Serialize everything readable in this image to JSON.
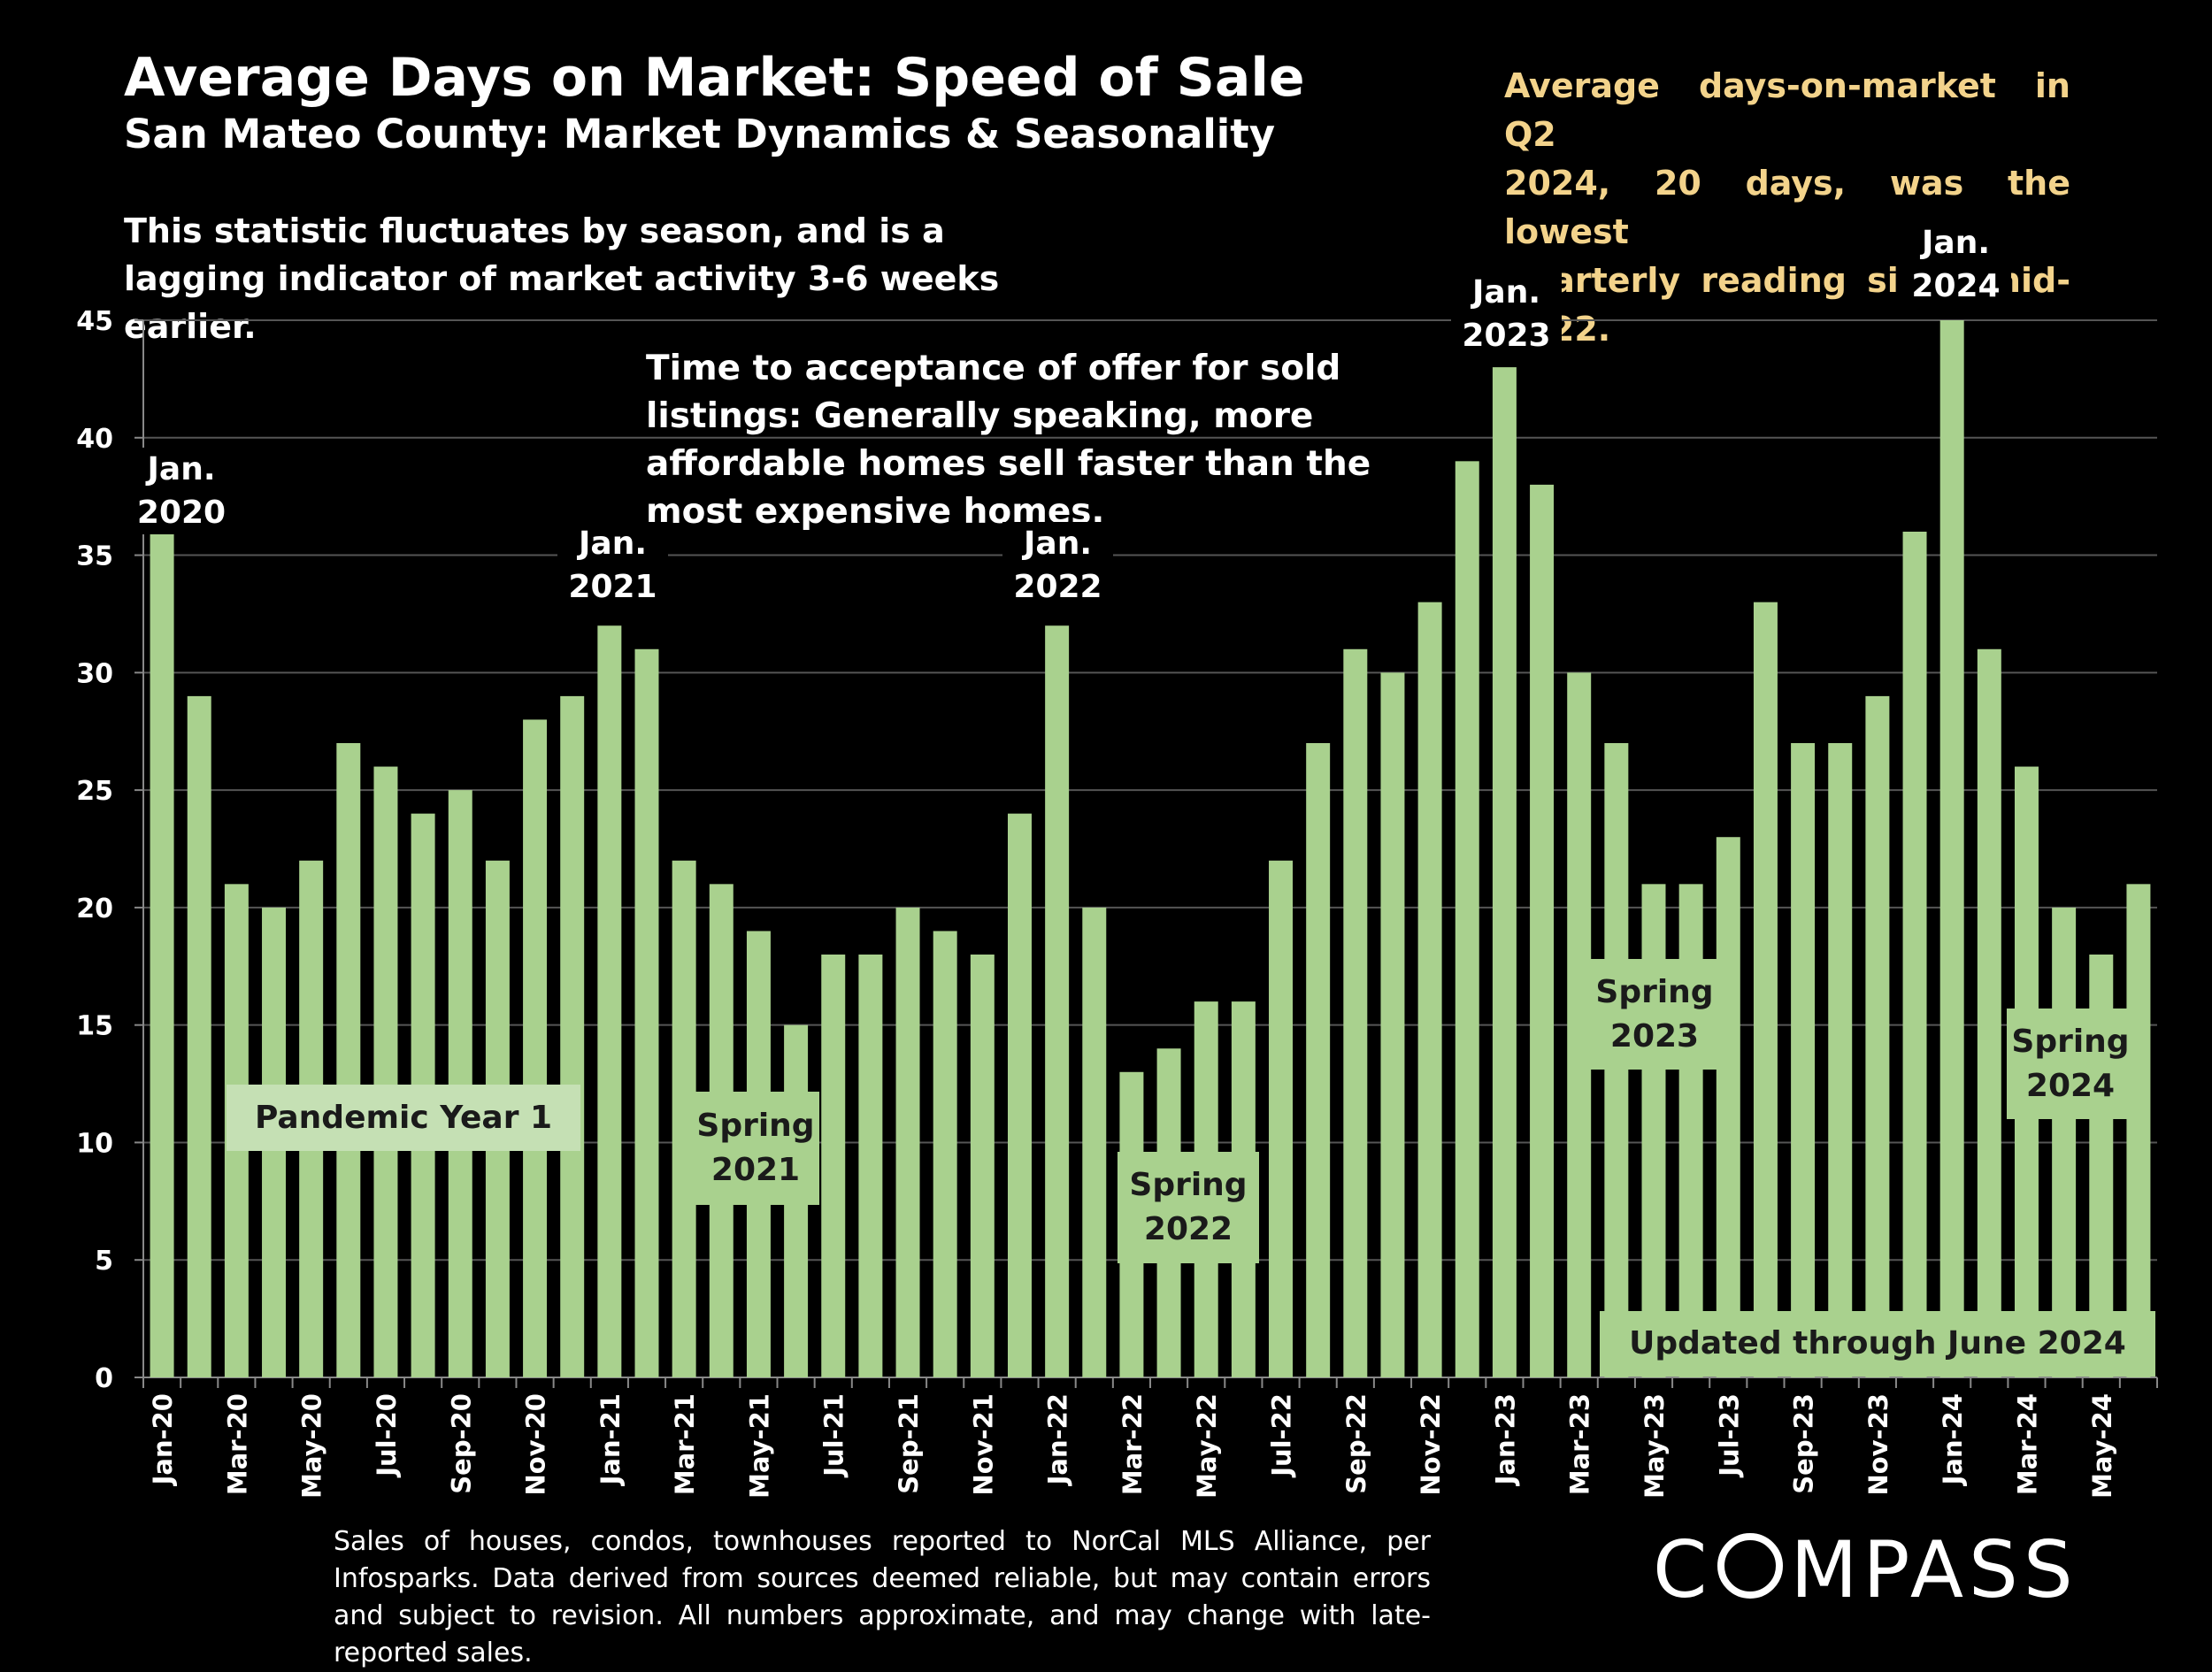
{
  "header": {
    "title": "Average Days on Market:  Speed of Sale",
    "subtitle": "San Mateo County: Market Dynamics & Seasonality",
    "note": "This statistic fluctuates by season, and is a lagging indicator of market activity 3-6 weeks earlier."
  },
  "callout": {
    "lines": [
      "Average days-on-market in Q2",
      "2024, 20 days, was the lowest",
      "quarterly reading since mid-2022."
    ]
  },
  "mid_note": "Time to acceptance of offer for sold listings: Generally speaking, more affordable homes sell faster than the most expensive homes.",
  "annotations": {
    "pandemic": "Pandemic Year 1",
    "spring2021": [
      "Spring",
      "2021"
    ],
    "spring2022": [
      "Spring",
      "2022"
    ],
    "spring2023": [
      "Spring",
      "2023"
    ],
    "spring2024": [
      "Spring",
      "2024"
    ],
    "updated": "Updated through June 2024",
    "jan2020": [
      "Jan.",
      "2020"
    ],
    "jan2021": [
      "Jan.",
      "2021"
    ],
    "jan2022": [
      "Jan.",
      "2022"
    ],
    "jan2023": [
      "Jan.",
      "2023"
    ],
    "jan2024": [
      "Jan.",
      "2024"
    ]
  },
  "footnote": "Sales of houses, condos, townhouses reported to NorCal MLS Alliance, per Infosparks. Data derived from sources deemed reliable, but may contain errors and subject to revision. All numbers approximate, and may change with late-reported sales.",
  "logo": {
    "left": "C",
    "right": "MPASS"
  },
  "colors": {
    "bar": "#a9d18e",
    "background": "#000000",
    "callout": "#f3d38b"
  },
  "chart_data": {
    "type": "bar",
    "categories": [
      "Jan-20",
      "Feb-20",
      "Mar-20",
      "Apr-20",
      "May-20",
      "Jun-20",
      "Jul-20",
      "Aug-20",
      "Sep-20",
      "Oct-20",
      "Nov-20",
      "Dec-20",
      "Jan-21",
      "Feb-21",
      "Mar-21",
      "Apr-21",
      "May-21",
      "Jun-21",
      "Jul-21",
      "Aug-21",
      "Sep-21",
      "Oct-21",
      "Nov-21",
      "Dec-21",
      "Jan-22",
      "Feb-22",
      "Mar-22",
      "Apr-22",
      "May-22",
      "Jun-22",
      "Jul-22",
      "Aug-22",
      "Sep-22",
      "Oct-22",
      "Nov-22",
      "Dec-22",
      "Jan-23",
      "Feb-23",
      "Mar-23",
      "Apr-23",
      "May-23",
      "Jun-23",
      "Jul-23",
      "Aug-23",
      "Sep-23",
      "Oct-23",
      "Nov-23",
      "Dec-23",
      "Jan-24",
      "Feb-24",
      "Mar-24",
      "Apr-24",
      "May-24",
      "Jun-24"
    ],
    "values": [
      36,
      29,
      21,
      20,
      22,
      27,
      26,
      24,
      25,
      22,
      28,
      29,
      32,
      31,
      22,
      21,
      19,
      15,
      18,
      18,
      20,
      19,
      18,
      24,
      32,
      20,
      13,
      14,
      16,
      16,
      22,
      27,
      31,
      30,
      33,
      39,
      43,
      38,
      30,
      27,
      21,
      21,
      23,
      33,
      27,
      27,
      29,
      36,
      45,
      31,
      26,
      20,
      18,
      21
    ],
    "x_tick_labels": [
      "Jan-20",
      "Mar-20",
      "May-20",
      "Jul-20",
      "Sep-20",
      "Nov-20",
      "Jan-21",
      "Mar-21",
      "May-21",
      "Jul-21",
      "Sep-21",
      "Nov-21",
      "Jan-22",
      "Mar-22",
      "May-22",
      "Jul-22",
      "Sep-22",
      "Nov-22",
      "Jan-23",
      "Mar-23",
      "May-23",
      "Jul-23",
      "Sep-23",
      "Nov-23",
      "Jan-24",
      "Mar-24",
      "May-24"
    ],
    "y_ticks": [
      0,
      5,
      10,
      15,
      20,
      25,
      30,
      35,
      40,
      45
    ],
    "ylim": [
      0,
      45
    ],
    "grid": true,
    "title": "Average Days on Market:  Speed of Sale",
    "xlabel": "",
    "ylabel": ""
  }
}
